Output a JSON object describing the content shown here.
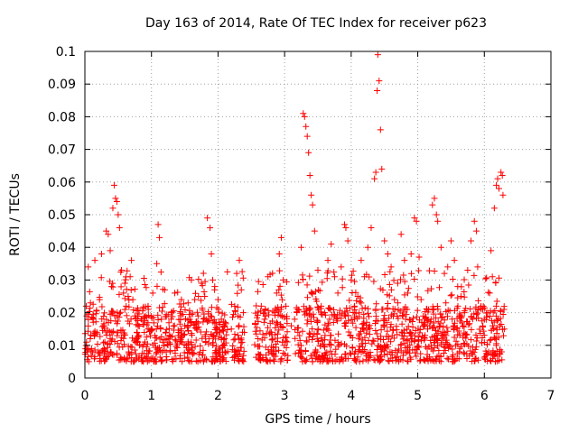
{
  "chart_data": {
    "type": "scatter",
    "title": "Day 163 of 2014, Rate Of TEC Index for receiver p623",
    "xlabel": "GPS time / hours",
    "ylabel": "ROTI / TECUs",
    "xlim": [
      0,
      7
    ],
    "ylim": [
      0,
      0.1
    ],
    "x_ticks": [
      "0",
      "1",
      "2",
      "3",
      "4",
      "5",
      "6",
      "7"
    ],
    "y_ticks": [
      "0",
      "0.01",
      "0.02",
      "0.03",
      "0.04",
      "0.05",
      "0.06",
      "0.07",
      "0.08",
      "0.09",
      "0.1"
    ],
    "grid": true,
    "marker": "+",
    "marker_color": "#ff0000",
    "series": [
      {
        "name": "ROTI",
        "points": [
          [
            0.02,
            0.022
          ],
          [
            0.05,
            0.034
          ],
          [
            0.08,
            0.012
          ],
          [
            0.1,
            0.009
          ],
          [
            0.12,
            0.018
          ],
          [
            0.15,
            0.036
          ],
          [
            0.18,
            0.014
          ],
          [
            0.2,
            0.008
          ],
          [
            0.22,
            0.024
          ],
          [
            0.25,
            0.038
          ],
          [
            0.28,
            0.016
          ],
          [
            0.3,
            0.011
          ],
          [
            0.32,
            0.045
          ],
          [
            0.35,
            0.044
          ],
          [
            0.38,
            0.039
          ],
          [
            0.4,
            0.028
          ],
          [
            0.42,
            0.052
          ],
          [
            0.44,
            0.059
          ],
          [
            0.46,
            0.055
          ],
          [
            0.48,
            0.054
          ],
          [
            0.5,
            0.05
          ],
          [
            0.52,
            0.046
          ],
          [
            0.55,
            0.033
          ],
          [
            0.58,
            0.026
          ],
          [
            0.6,
            0.029
          ],
          [
            0.62,
            0.022
          ],
          [
            0.65,
            0.025
          ],
          [
            0.68,
            0.031
          ],
          [
            0.7,
            0.036
          ],
          [
            0.72,
            0.024
          ],
          [
            0.75,
            0.019
          ],
          [
            0.78,
            0.014
          ],
          [
            0.8,
            0.016
          ],
          [
            0.85,
            0.018
          ],
          [
            0.9,
            0.011
          ],
          [
            0.95,
            0.022
          ],
          [
            1.0,
            0.015
          ],
          [
            1.02,
            0.026
          ],
          [
            1.05,
            0.013
          ],
          [
            1.08,
            0.035
          ],
          [
            1.1,
            0.047
          ],
          [
            1.12,
            0.043
          ],
          [
            1.15,
            0.018
          ],
          [
            1.2,
            0.027
          ],
          [
            1.25,
            0.012
          ],
          [
            1.3,
            0.02
          ],
          [
            1.35,
            0.026
          ],
          [
            1.4,
            0.013
          ],
          [
            1.45,
            0.024
          ],
          [
            1.5,
            0.016
          ],
          [
            1.55,
            0.023
          ],
          [
            1.6,
            0.03
          ],
          [
            1.65,
            0.024
          ],
          [
            1.7,
            0.019
          ],
          [
            1.75,
            0.029
          ],
          [
            1.8,
            0.025
          ],
          [
            1.84,
            0.049
          ],
          [
            1.88,
            0.046
          ],
          [
            1.9,
            0.038
          ],
          [
            1.92,
            0.03
          ],
          [
            1.95,
            0.028
          ],
          [
            2.0,
            0.024
          ],
          [
            2.05,
            0.018
          ],
          [
            2.1,
            0.012
          ],
          [
            2.2,
            0.015
          ],
          [
            2.25,
            0.022
          ],
          [
            2.28,
            0.032
          ],
          [
            2.32,
            0.036
          ],
          [
            2.35,
            0.027
          ],
          [
            2.38,
            0.02
          ],
          [
            2.6,
            0.012
          ],
          [
            2.65,
            0.022
          ],
          [
            2.7,
            0.018
          ],
          [
            2.75,
            0.031
          ],
          [
            2.8,
            0.014
          ],
          [
            2.85,
            0.02
          ],
          [
            2.88,
            0.026
          ],
          [
            2.92,
            0.038
          ],
          [
            2.95,
            0.043
          ],
          [
            2.98,
            0.03
          ],
          [
            3.02,
            0.022
          ],
          [
            3.1,
            0.016
          ],
          [
            3.15,
            0.018
          ],
          [
            3.2,
            0.014
          ],
          [
            3.25,
            0.04
          ],
          [
            3.28,
            0.081
          ],
          [
            3.3,
            0.08
          ],
          [
            3.32,
            0.077
          ],
          [
            3.34,
            0.074
          ],
          [
            3.36,
            0.069
          ],
          [
            3.38,
            0.062
          ],
          [
            3.4,
            0.056
          ],
          [
            3.42,
            0.053
          ],
          [
            3.45,
            0.045
          ],
          [
            3.5,
            0.033
          ],
          [
            3.55,
            0.022
          ],
          [
            3.6,
            0.02
          ],
          [
            3.65,
            0.036
          ],
          [
            3.7,
            0.041
          ],
          [
            3.75,
            0.031
          ],
          [
            3.8,
            0.026
          ],
          [
            3.85,
            0.034
          ],
          [
            3.9,
            0.047
          ],
          [
            3.92,
            0.046
          ],
          [
            3.95,
            0.042
          ],
          [
            4.0,
            0.03
          ],
          [
            4.05,
            0.022
          ],
          [
            4.1,
            0.025
          ],
          [
            4.15,
            0.036
          ],
          [
            4.2,
            0.031
          ],
          [
            4.25,
            0.04
          ],
          [
            4.3,
            0.046
          ],
          [
            4.35,
            0.061
          ],
          [
            4.37,
            0.063
          ],
          [
            4.39,
            0.088
          ],
          [
            4.4,
            0.099
          ],
          [
            4.42,
            0.091
          ],
          [
            4.44,
            0.076
          ],
          [
            4.46,
            0.064
          ],
          [
            4.5,
            0.042
          ],
          [
            4.55,
            0.038
          ],
          [
            4.6,
            0.034
          ],
          [
            4.65,
            0.024
          ],
          [
            4.7,
            0.029
          ],
          [
            4.75,
            0.044
          ],
          [
            4.8,
            0.036
          ],
          [
            4.85,
            0.026
          ],
          [
            4.9,
            0.038
          ],
          [
            4.95,
            0.049
          ],
          [
            4.98,
            0.048
          ],
          [
            5.02,
            0.037
          ],
          [
            5.05,
            0.024
          ],
          [
            5.1,
            0.016
          ],
          [
            5.2,
            0.018
          ],
          [
            5.22,
            0.053
          ],
          [
            5.25,
            0.055
          ],
          [
            5.28,
            0.05
          ],
          [
            5.3,
            0.048
          ],
          [
            5.35,
            0.04
          ],
          [
            5.4,
            0.032
          ],
          [
            5.45,
            0.034
          ],
          [
            5.5,
            0.042
          ],
          [
            5.55,
            0.036
          ],
          [
            5.6,
            0.028
          ],
          [
            5.65,
            0.025
          ],
          [
            5.7,
            0.02
          ],
          [
            5.75,
            0.033
          ],
          [
            5.8,
            0.042
          ],
          [
            5.85,
            0.048
          ],
          [
            5.88,
            0.045
          ],
          [
            5.9,
            0.034
          ],
          [
            5.95,
            0.022
          ],
          [
            6.0,
            0.018
          ],
          [
            6.05,
            0.02
          ],
          [
            6.08,
            0.026
          ],
          [
            6.1,
            0.039
          ],
          [
            6.12,
            0.031
          ],
          [
            6.15,
            0.052
          ],
          [
            6.18,
            0.059
          ],
          [
            6.2,
            0.061
          ],
          [
            6.22,
            0.058
          ],
          [
            6.25,
            0.063
          ],
          [
            6.27,
            0.062
          ],
          [
            6.28,
            0.056
          ],
          [
            6.3,
            0.015
          ]
        ],
        "background_band": {
          "segments": [
            [
              0.0,
              2.15
            ],
            [
              2.2,
              2.4
            ],
            [
              2.55,
              3.05
            ],
            [
              3.15,
              5.2
            ],
            [
              5.2,
              6.3
            ]
          ],
          "typical_range": [
            0.005,
            0.022
          ]
        }
      }
    ]
  }
}
